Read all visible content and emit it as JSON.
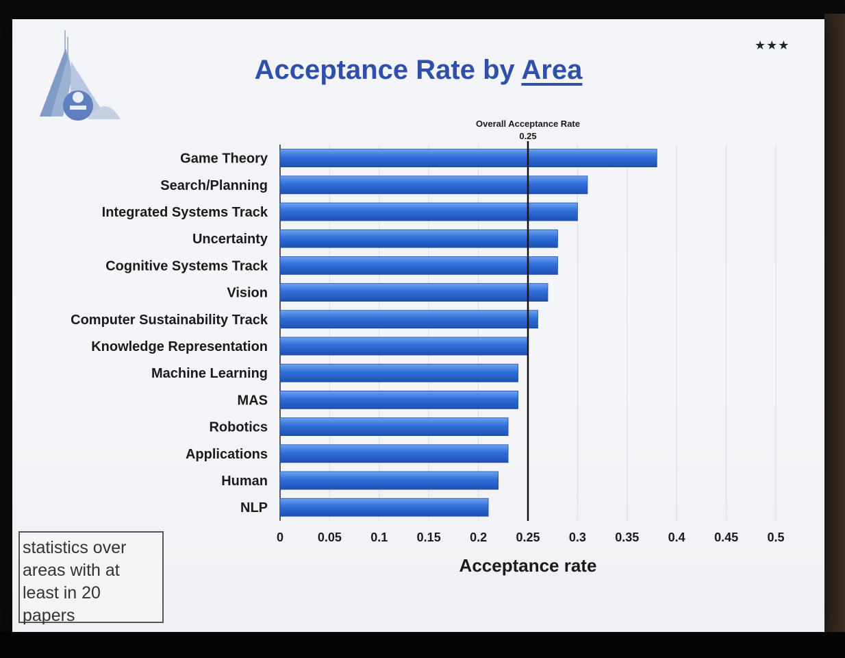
{
  "slide": {
    "title_prefix": "Acceptance Rate by ",
    "title_area": "Area",
    "stars": "★★★",
    "note": "statistics over\nareas with at\nleast in 20\npapers"
  },
  "chart_data": {
    "type": "bar",
    "orientation": "horizontal",
    "title": "Acceptance Rate by Area",
    "xlabel": "Acceptance rate",
    "ylabel": "",
    "categories": [
      "Game Theory",
      "Search/Planning",
      "Integrated Systems Track",
      "Uncertainty",
      "Cognitive Systems Track",
      "Vision",
      "Computer Sustainability Track",
      "Knowledge Representation",
      "Machine Learning",
      "MAS",
      "Robotics",
      "Applications",
      "Human",
      "NLP"
    ],
    "values": [
      0.38,
      0.31,
      0.3,
      0.28,
      0.28,
      0.27,
      0.26,
      0.25,
      0.24,
      0.24,
      0.23,
      0.23,
      0.22,
      0.21
    ],
    "xlim": [
      0,
      0.5
    ],
    "xticks": [
      "0",
      "0.05",
      "0.1",
      "0.15",
      "0.2",
      "0.25",
      "0.3",
      "0.35",
      "0.4",
      "0.45",
      "0.5"
    ],
    "grid": true,
    "reference_line": {
      "value": 0.25,
      "label": "Overall Acceptance Rate",
      "value_label": "0.25"
    },
    "bar_color": "#2f6fd8"
  }
}
